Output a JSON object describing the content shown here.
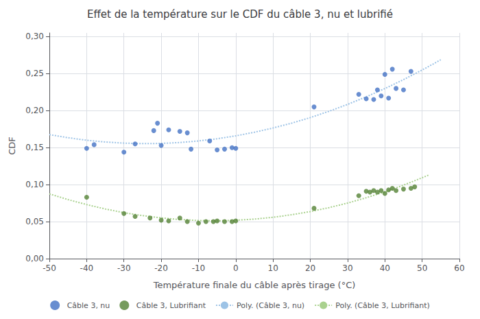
{
  "chart_data": {
    "type": "scatter",
    "title": "Effet de la température sur le CDF du câble 3, nu et lubrifié",
    "xlabel": "Température finale du câble après tirage (°C)",
    "ylabel": "CDF",
    "xlim": [
      -50,
      60
    ],
    "ylim": [
      0.0,
      0.305
    ],
    "xticks": [
      -50,
      -40,
      -30,
      -20,
      -10,
      0,
      10,
      20,
      30,
      40,
      50,
      60
    ],
    "yticks": [
      {
        "value": 0.0,
        "label": "0,00"
      },
      {
        "value": 0.05,
        "label": "0,05"
      },
      {
        "value": 0.1,
        "label": "0,10"
      },
      {
        "value": 0.15,
        "label": "0,15"
      },
      {
        "value": 0.2,
        "label": "0,20"
      },
      {
        "value": 0.25,
        "label": "0,25"
      },
      {
        "value": 0.3,
        "label": "0,30"
      }
    ],
    "grid": true,
    "legend": "bottom",
    "series": [
      {
        "name": "Câble 3, nu",
        "type": "scatter",
        "color": "#4472C4",
        "marker": "circle",
        "x": [
          -40,
          -38,
          -30,
          -27,
          -22,
          -21,
          -20,
          -18,
          -15,
          -13,
          -12,
          -7,
          -5,
          -3,
          -1,
          0,
          21,
          33,
          35,
          37,
          38,
          39,
          40,
          41,
          42,
          43,
          45,
          47
        ],
        "values": [
          0.149,
          0.154,
          0.144,
          0.155,
          0.173,
          0.183,
          0.153,
          0.174,
          0.172,
          0.17,
          0.148,
          0.159,
          0.147,
          0.148,
          0.15,
          0.149,
          0.205,
          0.222,
          0.216,
          0.215,
          0.228,
          0.22,
          0.249,
          0.217,
          0.256,
          0.23,
          0.228,
          0.253
        ]
      },
      {
        "name": "Câble 3, Lubrifiant",
        "type": "scatter",
        "color": "#548235",
        "marker": "circle",
        "x": [
          -40,
          -30,
          -27,
          -23,
          -20,
          -18,
          -15,
          -13,
          -10,
          -8,
          -6,
          -5,
          -3,
          -1,
          0,
          21,
          33,
          35,
          36,
          37,
          38,
          39,
          40,
          41,
          42,
          43,
          45,
          47,
          48
        ],
        "values": [
          0.083,
          0.061,
          0.057,
          0.055,
          0.052,
          0.051,
          0.055,
          0.05,
          0.048,
          0.05,
          0.05,
          0.051,
          0.05,
          0.05,
          0.051,
          0.068,
          0.085,
          0.091,
          0.09,
          0.092,
          0.09,
          0.092,
          0.088,
          0.093,
          0.095,
          0.092,
          0.094,
          0.095,
          0.097
        ]
      },
      {
        "name": "Poly. (Câble 3, nu)",
        "type": "line",
        "color": "#9DC3E6",
        "line_style": "dotted",
        "x": [
          -50,
          -45,
          -40,
          -35,
          -30,
          -25,
          -20,
          -15,
          -10,
          -5,
          0,
          5,
          10,
          15,
          20,
          25,
          30,
          35,
          40,
          45,
          50,
          55
        ],
        "values": [
          0.1676,
          0.1634,
          0.16,
          0.1576,
          0.1561,
          0.1554,
          0.1557,
          0.1569,
          0.159,
          0.162,
          0.1659,
          0.1708,
          0.1765,
          0.1831,
          0.1906,
          0.1991,
          0.2084,
          0.2187,
          0.2298,
          0.2419,
          0.2549,
          0.2687
        ]
      },
      {
        "name": "Poly. (Câble 3, Lubrifiant)",
        "type": "line",
        "color": "#A9D18E",
        "line_style": "dotted",
        "x": [
          -50,
          -45,
          -40,
          -35,
          -30,
          -25,
          -20,
          -15,
          -10,
          -5,
          0,
          5,
          10,
          15,
          20,
          25,
          30,
          35,
          40,
          45,
          50,
          52
        ],
        "values": [
          0.0875,
          0.0798,
          0.073,
          0.0671,
          0.0621,
          0.0581,
          0.055,
          0.0528,
          0.0515,
          0.0512,
          0.0518,
          0.0534,
          0.0559,
          0.0593,
          0.0636,
          0.0689,
          0.0751,
          0.0823,
          0.0903,
          0.0993,
          0.1093,
          0.1135
        ]
      }
    ]
  }
}
